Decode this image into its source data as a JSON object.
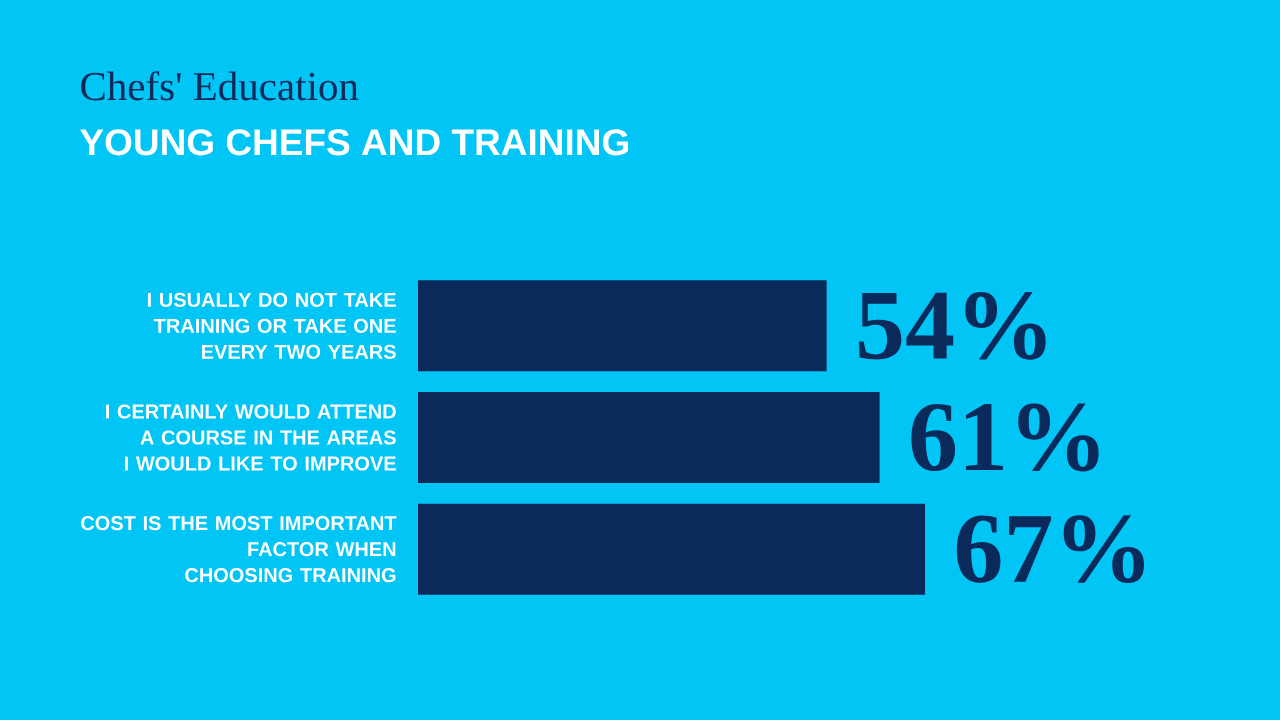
{
  "chart_data": {
    "type": "bar",
    "orientation": "horizontal",
    "title": "Chefs' Education",
    "subtitle": "YOUNG CHEFS AND TRAINING",
    "categories": [
      "I USUALLY DO NOT TAKE\nTRAINING OR TAKE ONE\nEVERY TWO YEARS",
      "I CERTAINLY WOULD ATTEND\nA COURSE IN THE AREAS\nI WOULD LIKE TO IMPROVE",
      "COST IS THE MOST IMPORTANT\nFACTOR WHEN\nCHOOSING TRAINING"
    ],
    "values": [
      54,
      61,
      67
    ],
    "value_labels": [
      "54%",
      "61%",
      "67%"
    ],
    "color": "#0b2a5c",
    "tick_labels": "y"
  }
}
